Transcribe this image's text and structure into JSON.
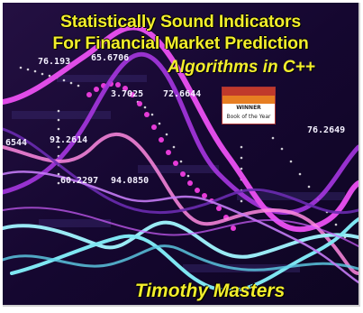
{
  "cover": {
    "title_line1": "Statistically Sound Indicators",
    "title_line2": "For Financial Market Prediction",
    "subtitle": "Algorithms in C++",
    "author": "Timothy Masters",
    "badge_line1": "",
    "badge_line2": "",
    "badge_line3": "WINNER",
    "badge_line4": "Book of the Year",
    "numbers": {
      "n1": "76.193",
      "n2": "65.6706",
      "n3": "3.7025",
      "n4": "72.6644",
      "n5": "76.2649",
      "n6": "6544",
      "n7": "91.2614",
      "n8": "60.2297",
      "n9": "94.0850"
    },
    "colors": {
      "background": "#17082e",
      "title": "#f2ee2c",
      "magenta_line": "#e04ce8",
      "cyan_line": "#7fe6f2",
      "purple_line": "#9a2fd6"
    }
  }
}
